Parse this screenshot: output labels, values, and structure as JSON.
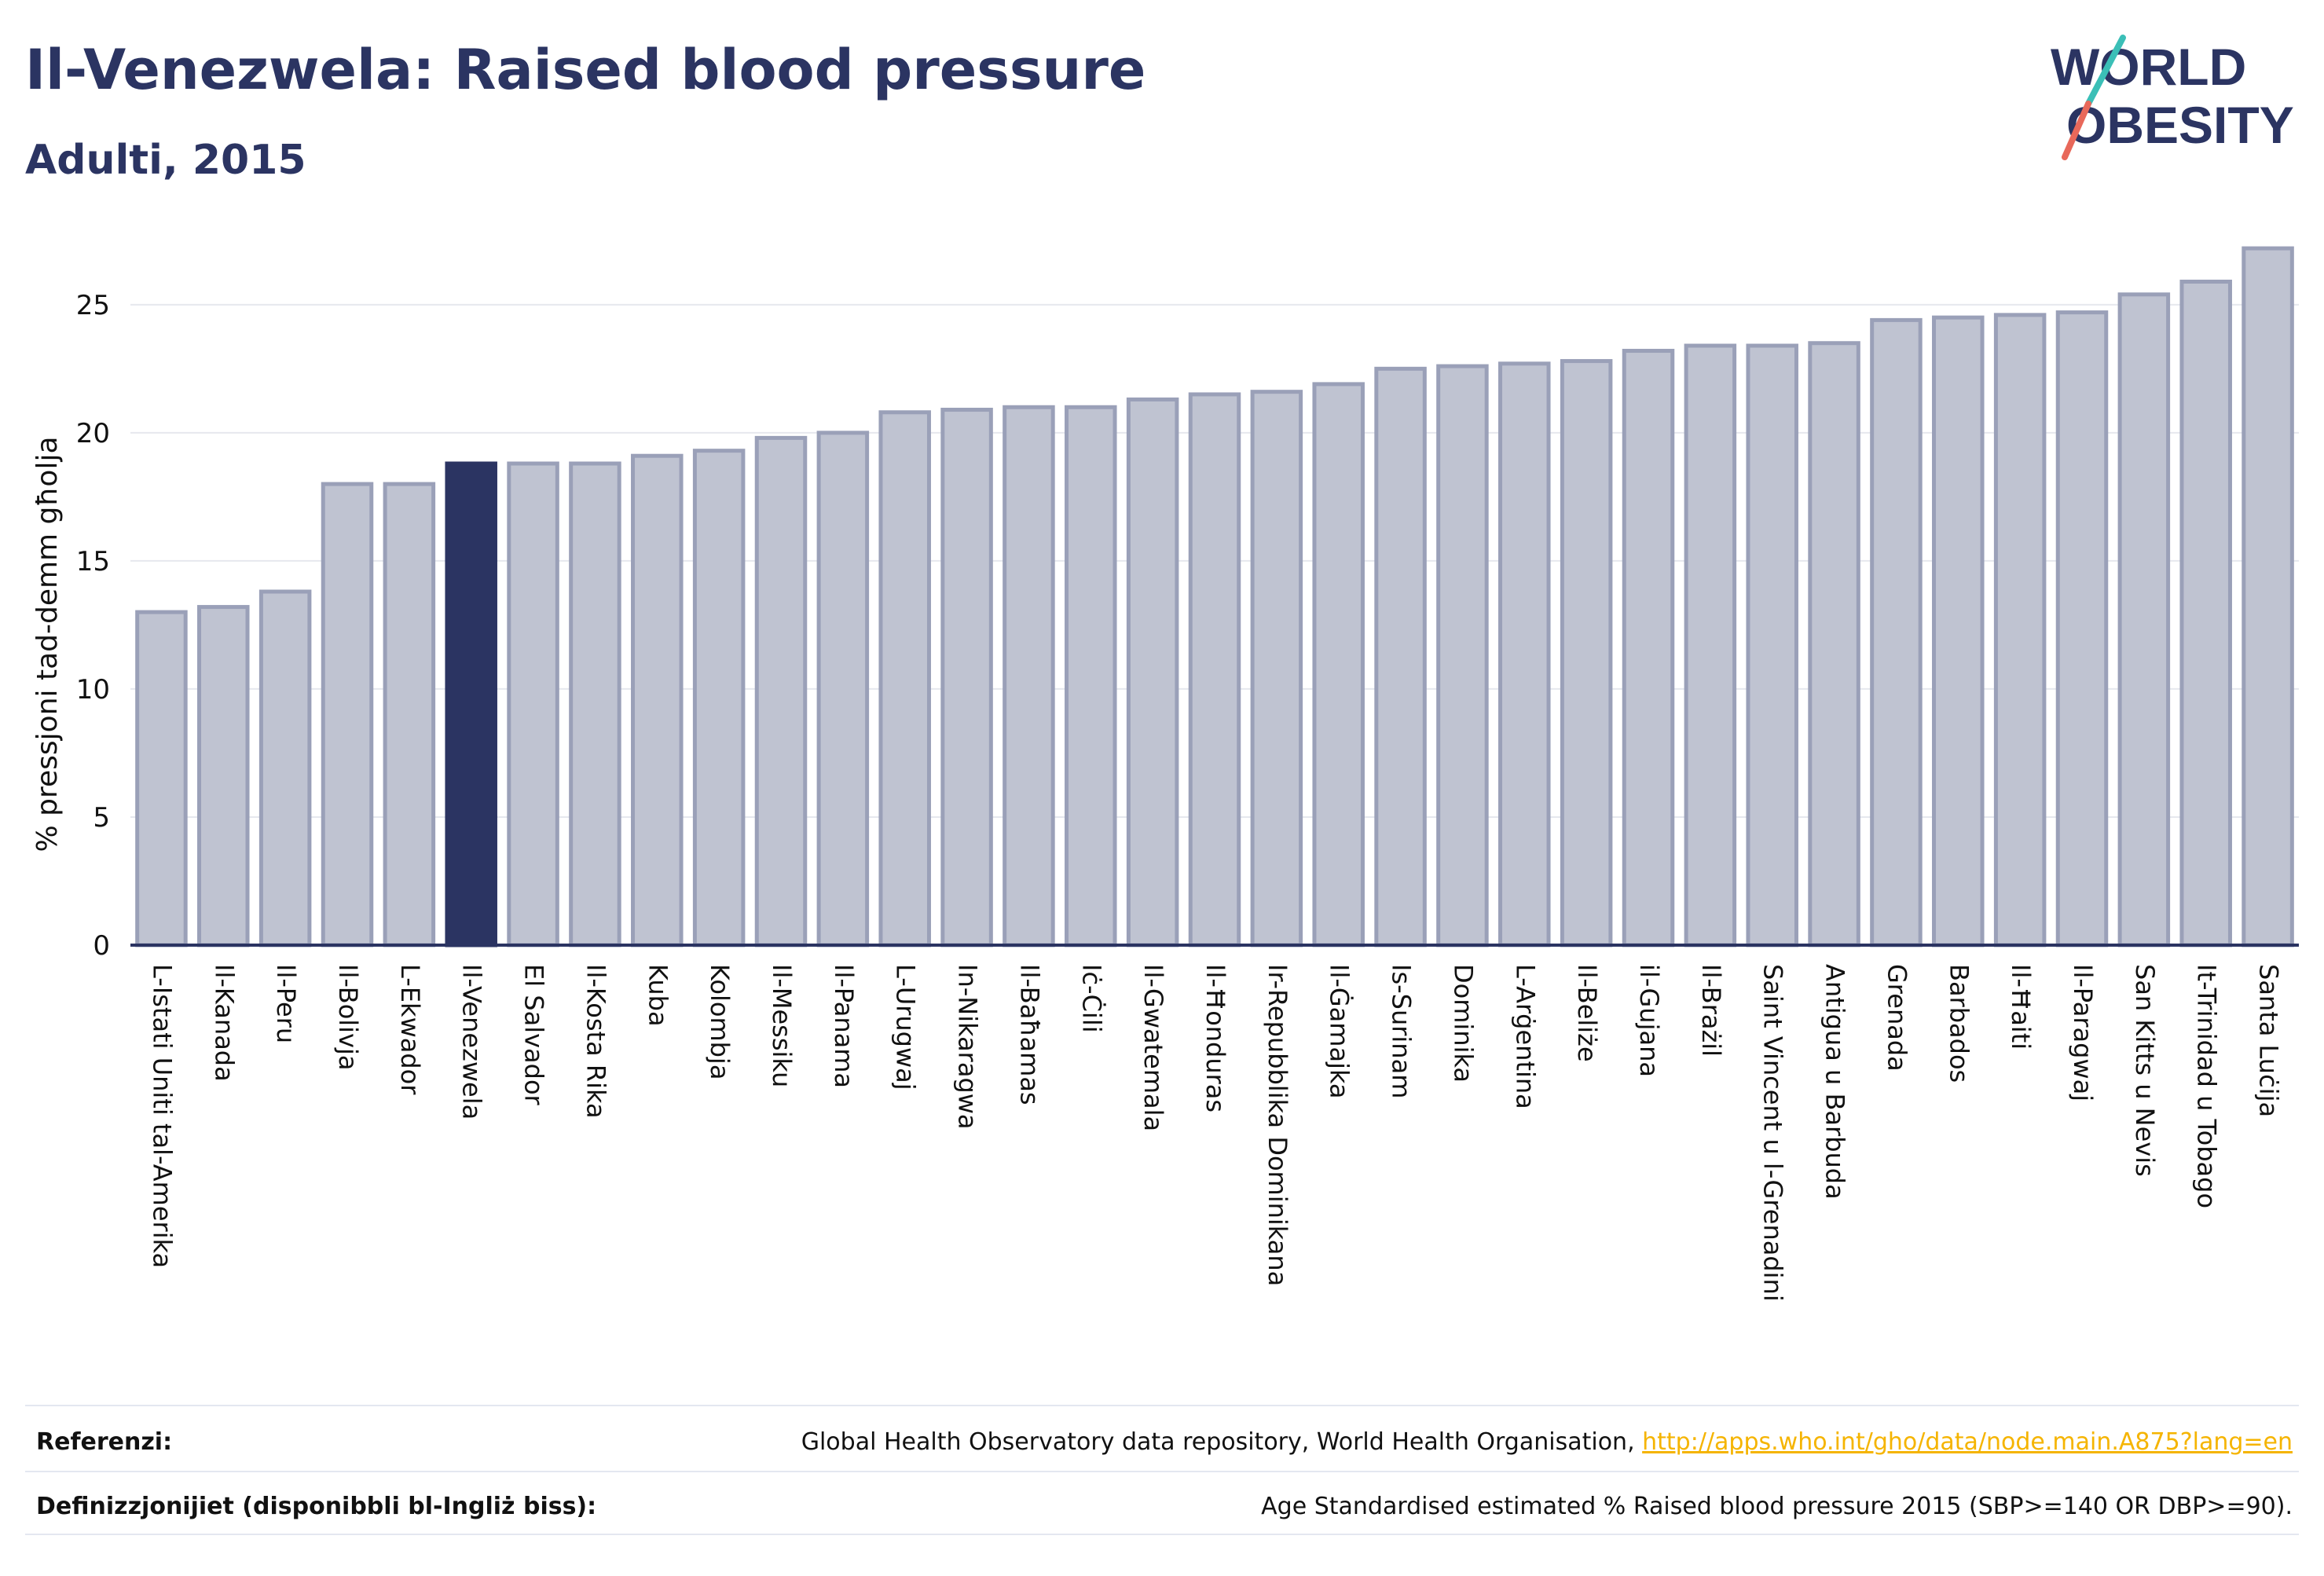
{
  "header": {
    "title": "Il-Venezwela: Raised blood pressure",
    "subtitle": "Adulti, 2015"
  },
  "logo": {
    "line1": "WORLD",
    "line2": "OBESITY"
  },
  "colors": {
    "highlight": "#2b3462",
    "bar_fill": "#bfc3d1",
    "bar_stroke": "#9aa0b8",
    "grid": "#e6e8ee",
    "axis": "#2b3462",
    "link": "#f5b400"
  },
  "chart_data": {
    "type": "bar",
    "ylabel": "% pressjoni tad-demm għolja",
    "ylim": [
      0,
      28
    ],
    "yticks": [
      0,
      5,
      10,
      15,
      20,
      25
    ],
    "highlight": "Il-Venezwela",
    "categories": [
      "L-Istati Uniti tal-Amerika",
      "Il-Kanada",
      "Il-Peru",
      "Il-Bolivja",
      "L-Ekwador",
      "Il-Venezwela",
      "El Salvador",
      "Il-Kosta Rika",
      "Kuba",
      "Kolombja",
      "Il-Messiku",
      "Il-Panama",
      "L-Urugwaj",
      "In-Nikaragwa",
      "Il-Baħamas",
      "Iċ-Ċili",
      "Il-Gwatemala",
      "Il-Ħonduras",
      "Ir-Repubblika Dominikana",
      "Il-Ġamajka",
      "Is-Surinam",
      "Dominika",
      "L-Arġentina",
      "Il-Beliże",
      "il-Gujana",
      "Il-Brażil",
      "Saint Vincent u l-Grenadini",
      "Antigua u Barbuda",
      "Grenada",
      "Barbados",
      "Il-Ħaiti",
      "Il-Paragwaj",
      "San Kitts u Nevis",
      "It-Trinidad u Tobago",
      "Santa Luċija"
    ],
    "values": [
      13.0,
      13.2,
      13.8,
      18.0,
      18.0,
      18.8,
      18.8,
      18.8,
      19.1,
      19.3,
      19.8,
      20.0,
      20.8,
      20.9,
      21.0,
      21.0,
      21.3,
      21.5,
      21.6,
      21.9,
      22.5,
      22.6,
      22.7,
      22.8,
      23.2,
      23.4,
      23.4,
      23.5,
      24.4,
      24.5,
      24.6,
      24.7,
      25.4,
      25.9,
      27.2
    ]
  },
  "footer": {
    "references_label": "Referenzi:",
    "references_text": "Global Health Observatory data repository, World Health Organisation, ",
    "references_link": "http://apps.who.int/gho/data/node.main.A875?lang=en",
    "definitions_label": "Definizzjonijiet (disponibbli bl-Ingliż biss):",
    "definitions_text": "Age Standardised estimated % Raised blood pressure 2015 (SBP>=140 OR DBP>=90)."
  }
}
